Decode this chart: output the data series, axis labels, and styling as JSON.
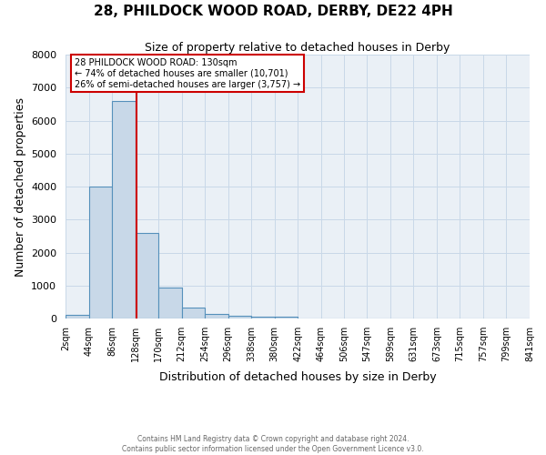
{
  "title": "28, PHILDOCK WOOD ROAD, DERBY, DE22 4PH",
  "subtitle": "Size of property relative to detached houses in Derby",
  "xlabel": "Distribution of detached houses by size in Derby",
  "ylabel": "Number of detached properties",
  "footer_line1": "Contains HM Land Registry data © Crown copyright and database right 2024.",
  "footer_line2": "Contains public sector information licensed under the Open Government Licence v3.0.",
  "bar_edges": [
    2,
    44,
    86,
    128,
    170,
    212,
    254,
    296,
    338,
    380,
    422,
    464,
    506,
    547,
    589,
    631,
    673,
    715,
    757,
    799,
    841
  ],
  "bar_values": [
    100,
    4000,
    6600,
    2600,
    950,
    320,
    130,
    90,
    60,
    50,
    0,
    0,
    0,
    0,
    0,
    0,
    0,
    0,
    0,
    0
  ],
  "bar_color": "#c8d8e8",
  "bar_edge_color": "#5590bb",
  "bar_edge_width": 0.8,
  "property_size": 130,
  "red_line_color": "#cc0000",
  "annotation_text": "28 PHILDOCK WOOD ROAD: 130sqm\n← 74% of detached houses are smaller (10,701)\n26% of semi-detached houses are larger (3,757) →",
  "annotation_box_color": "#cc0000",
  "annotation_text_color": "#000000",
  "ylim": [
    0,
    8000
  ],
  "title_fontsize": 11,
  "subtitle_fontsize": 9,
  "axis_label_fontsize": 9,
  "tick_fontsize": 7,
  "grid_color": "#c8d8e8",
  "background_color": "#ffffff",
  "plot_bg_color": "#eaf0f6"
}
